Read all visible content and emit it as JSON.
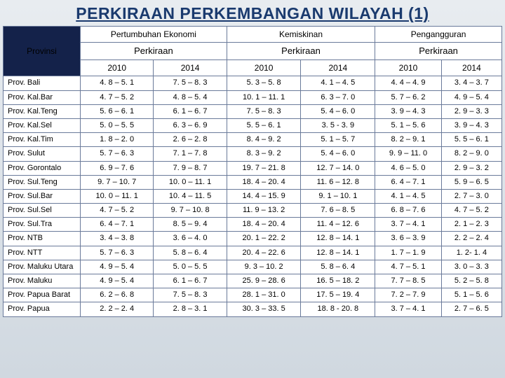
{
  "title": "PERKIRAAN PERKEMBANGAN WILAYAH (1)",
  "colors": {
    "title_color": "#1a3a6e",
    "corner_bg": "#14224a",
    "corner_fg": "#ffffff",
    "border": "#6a7a9a",
    "bg_gradient_top": "#e8ecf0",
    "bg_gradient_bottom": "#d0d8e0"
  },
  "groups": [
    {
      "label": "Pertumbuhan Ekonomi",
      "sub": "Perkiraan",
      "years": [
        "2010",
        "2014"
      ]
    },
    {
      "label": "Kemiskinan",
      "sub": "Perkiraan",
      "years": [
        "2010",
        "2014"
      ]
    },
    {
      "label": "Pengangguran",
      "sub": "Perkiraan",
      "years": [
        "2010",
        "2014"
      ]
    }
  ],
  "corner_label": "Provinsi",
  "rows": [
    {
      "prov": "Prov. Bali",
      "cells": [
        "4. 8 – 5. 1",
        "7. 5 – 8. 3",
        "5. 3 – 5. 8",
        "4. 1 – 4. 5",
        "4. 4 – 4. 9",
        "3. 4 – 3. 7"
      ]
    },
    {
      "prov": "Prov. Kal.Bar",
      "cells": [
        "4. 7 – 5. 2",
        "4. 8 – 5. 4",
        "10. 1 – 11. 1",
        "6. 3 – 7. 0",
        "5. 7 – 6. 2",
        "4. 9 – 5. 4"
      ]
    },
    {
      "prov": "Prov. Kal.Teng",
      "cells": [
        "5. 6 – 6. 1",
        "6. 1 – 6. 7",
        "7. 5 – 8. 3",
        "5. 4 – 6. 0",
        "3. 9 – 4. 3",
        "2. 9 – 3. 3"
      ]
    },
    {
      "prov": "Prov. Kal.Sel",
      "cells": [
        "5. 0 – 5. 5",
        "6. 3 – 6. 9",
        "5. 5 – 6. 1",
        "3. 5 - 3. 9",
        "5. 1 – 5. 6",
        "3. 9 – 4. 3"
      ]
    },
    {
      "prov": "Prov. Kal.Tim",
      "cells": [
        "1. 8 – 2. 0",
        "2. 6 – 2. 8",
        "8. 4 – 9. 2",
        "5. 1 – 5. 7",
        "8. 2 – 9. 1",
        "5. 5 – 6. 1"
      ]
    },
    {
      "prov": "Prov. Sulut",
      "cells": [
        "5. 7 – 6. 3",
        "7. 1 – 7. 8",
        "8. 3 – 9. 2",
        "5. 4 – 6. 0",
        "9. 9 – 11. 0",
        "8. 2 – 9. 0"
      ]
    },
    {
      "prov": "Prov. Gorontalo",
      "cells": [
        "6. 9 – 7. 6",
        "7. 9 – 8. 7",
        "19. 7 – 21. 8",
        "12. 7 – 14. 0",
        "4. 6 – 5. 0",
        "2. 9 – 3. 2"
      ]
    },
    {
      "prov": "Prov. Sul.Teng",
      "cells": [
        "9. 7 – 10. 7",
        "10. 0 – 11. 1",
        "18. 4 – 20. 4",
        "11. 6 – 12. 8",
        "6. 4 – 7. 1",
        "5. 9 – 6. 5"
      ]
    },
    {
      "prov": "Prov. Sul.Bar",
      "cells": [
        "10. 0 – 11. 1",
        "10. 4 – 11. 5",
        "14. 4 – 15. 9",
        "9. 1 – 10. 1",
        "4. 1 – 4. 5",
        "2. 7 – 3. 0"
      ]
    },
    {
      "prov": "Prov. Sul.Sel",
      "cells": [
        "4. 7 – 5. 2",
        "9. 7 – 10. 8",
        "11. 9 – 13. 2",
        "7. 6 – 8. 5",
        "6. 8 – 7. 6",
        "4. 7 – 5. 2"
      ]
    },
    {
      "prov": "Prov. Sul.Tra",
      "cells": [
        "6. 4 – 7. 1",
        "8. 5 – 9. 4",
        "18. 4 – 20. 4",
        "11. 4 – 12. 6",
        "3. 7 – 4. 1",
        "2. 1 – 2. 3"
      ]
    },
    {
      "prov": "Prov. NTB",
      "cells": [
        "3. 4 – 3. 8",
        "3. 6 – 4. 0",
        "20. 1 – 22. 2",
        "12. 8 – 14. 1",
        "3. 6 – 3. 9",
        "2. 2 – 2. 4"
      ]
    },
    {
      "prov": "Prov. NTT",
      "cells": [
        "5. 7 – 6. 3",
        "5. 8 – 6. 4",
        "20. 4 – 22. 6",
        "12. 8 – 14. 1",
        "1. 7 – 1. 9",
        "1. 2- 1. 4"
      ]
    },
    {
      "prov": "Prov. Maluku Utara",
      "cells": [
        "4. 9 – 5. 4",
        "5. 0 – 5. 5",
        "9. 3 – 10. 2",
        "5. 8 – 6. 4",
        "4. 7 – 5. 1",
        "3. 0 – 3. 3"
      ]
    },
    {
      "prov": "Prov. Maluku",
      "cells": [
        "4. 9 – 5. 4",
        "6. 1 – 6. 7",
        "25. 9 – 28. 6",
        "16. 5 – 18. 2",
        "7. 7 – 8. 5",
        "5. 2 – 5. 8"
      ]
    },
    {
      "prov": "Prov. Papua Barat",
      "cells": [
        "6. 2 – 6. 8",
        "7. 5 – 8. 3",
        "28. 1 – 31. 0",
        "17. 5 – 19. 4",
        "7. 2 – 7. 9",
        "5. 1 – 5. 6"
      ]
    },
    {
      "prov": "Prov. Papua",
      "cells": [
        "2. 2 – 2. 4",
        "2. 8 – 3. 1",
        "30. 3 – 33. 5",
        "18. 8 - 20. 8",
        "3. 7 – 4. 1",
        "2. 7 – 6. 5"
      ]
    }
  ]
}
